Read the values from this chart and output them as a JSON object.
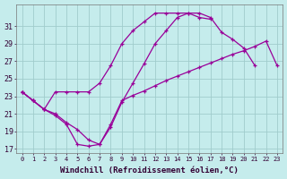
{
  "xlabel": "Windchill (Refroidissement éolien,°C)",
  "bg_color": "#c5ecec",
  "grid_color": "#a0cccc",
  "line_color": "#990099",
  "xlim": [
    -0.5,
    23.5
  ],
  "ylim": [
    16.5,
    33.5
  ],
  "x_ticks": [
    0,
    1,
    2,
    3,
    4,
    5,
    6,
    7,
    8,
    9,
    10,
    11,
    12,
    13,
    14,
    15,
    16,
    17,
    18,
    19,
    20,
    21,
    22,
    23
  ],
  "y_ticks": [
    17,
    19,
    21,
    23,
    25,
    27,
    29,
    31
  ],
  "curve_A_x": [
    0,
    1,
    2,
    3,
    4,
    5,
    6,
    7,
    8,
    9,
    10,
    11,
    12,
    13,
    14,
    15,
    16,
    17,
    18,
    19,
    20,
    21,
    22,
    23
  ],
  "curve_A_y": [
    23.5,
    22.5,
    21.5,
    23.5,
    23.5,
    23.5,
    23.5,
    24.5,
    26.5,
    29.0,
    30.5,
    31.5,
    32.5,
    32.5,
    32.5,
    32.5,
    32.0,
    31.8,
    null,
    null,
    null,
    null,
    null,
    null
  ],
  "curve_B_x": [
    0,
    1,
    2,
    3,
    4,
    5,
    6,
    7,
    8,
    9,
    10,
    11,
    12,
    13,
    14,
    15,
    16,
    17,
    18,
    19,
    20,
    21
  ],
  "curve_B_y": [
    23.5,
    22.5,
    21.5,
    21.0,
    20.0,
    19.2,
    18.0,
    17.5,
    19.5,
    22.3,
    24.5,
    26.7,
    29.0,
    30.5,
    32.0,
    32.5,
    32.5,
    32.0,
    30.3,
    29.5,
    28.5,
    26.5
  ],
  "curve_C_x": [
    0,
    1,
    2,
    3,
    4,
    5,
    6,
    7,
    8,
    9,
    10,
    11,
    12,
    13,
    14,
    15,
    16,
    17,
    18,
    19,
    20,
    21,
    22,
    23
  ],
  "curve_C_y": [
    23.5,
    22.5,
    21.5,
    20.8,
    19.8,
    17.5,
    17.3,
    17.5,
    19.8,
    22.5,
    23.1,
    23.6,
    24.2,
    24.8,
    25.3,
    25.8,
    26.3,
    26.8,
    27.3,
    27.8,
    28.2,
    28.7,
    29.3,
    26.5
  ]
}
